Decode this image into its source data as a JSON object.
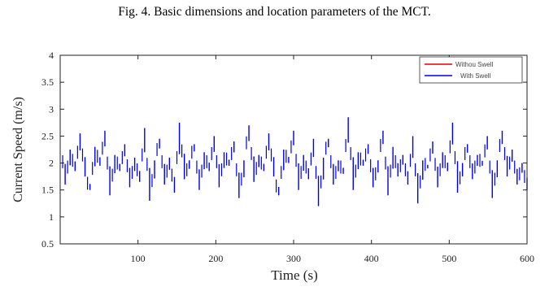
{
  "caption": "Fig. 4.  Basic dimensions and location parameters of the MCT.",
  "chart_data": {
    "type": "line",
    "title": "",
    "xlabel": "Time  (s)",
    "ylabel": "Current Speed (m/s)",
    "xlim": [
      0,
      600
    ],
    "ylim": [
      0.5,
      4
    ],
    "xticks": [
      100,
      200,
      300,
      400,
      500,
      600
    ],
    "xtick_labels": [
      "100",
      "200",
      "300",
      "400",
      "500",
      "600"
    ],
    "yticks": [
      0.5,
      1,
      1.5,
      2,
      2.5,
      3,
      3.5,
      4
    ],
    "ytick_labels": [
      "0.5",
      "1",
      "1.5",
      "2",
      "2.5",
      "3",
      "3.5",
      "4"
    ],
    "grid": false,
    "legend_position": "top-right",
    "series": [
      {
        "name": "Withou Swell",
        "color": "#e00000",
        "values": []
      },
      {
        "name": "With Swell",
        "color": "#0000e0",
        "t_start": 0,
        "t_end": 600,
        "sample_step": 6,
        "mean": 2.0,
        "range": [
          1.05,
          2.95
        ],
        "values": [
          2.45,
          1.6,
          2.25,
          1.85,
          2.55,
          1.75,
          1.5,
          2.3,
          1.95,
          2.6,
          1.4,
          2.15,
          1.85,
          2.35,
          1.55,
          2.1,
          1.65,
          2.65,
          1.3,
          2.05,
          2.45,
          1.6,
          2.1,
          1.45,
          2.75,
          1.7,
          2.05,
          2.35,
          1.5,
          2.2,
          1.85,
          2.5,
          1.55,
          2.2,
          1.95,
          2.4,
          1.35,
          2.05,
          2.7,
          1.65,
          2.15,
          1.85,
          2.55,
          1.75,
          1.4,
          2.25,
          2.0,
          2.6,
          1.5,
          2.15,
          1.7,
          2.45,
          1.2,
          2.1,
          2.45,
          1.6,
          2.05,
          1.8,
          2.85,
          1.5,
          2.2,
          1.95,
          2.35,
          1.55,
          2.05,
          2.6,
          1.4,
          2.3,
          1.75,
          2.15,
          1.6,
          2.5,
          1.25,
          2.05,
          1.9,
          2.4,
          1.55,
          2.2,
          1.85,
          2.75,
          1.45,
          2.0,
          2.35,
          1.7,
          2.15,
          1.95,
          2.5,
          1.35,
          2.05,
          2.6,
          1.75,
          2.25,
          1.6,
          2.0,
          1.5
        ]
      }
    ]
  }
}
